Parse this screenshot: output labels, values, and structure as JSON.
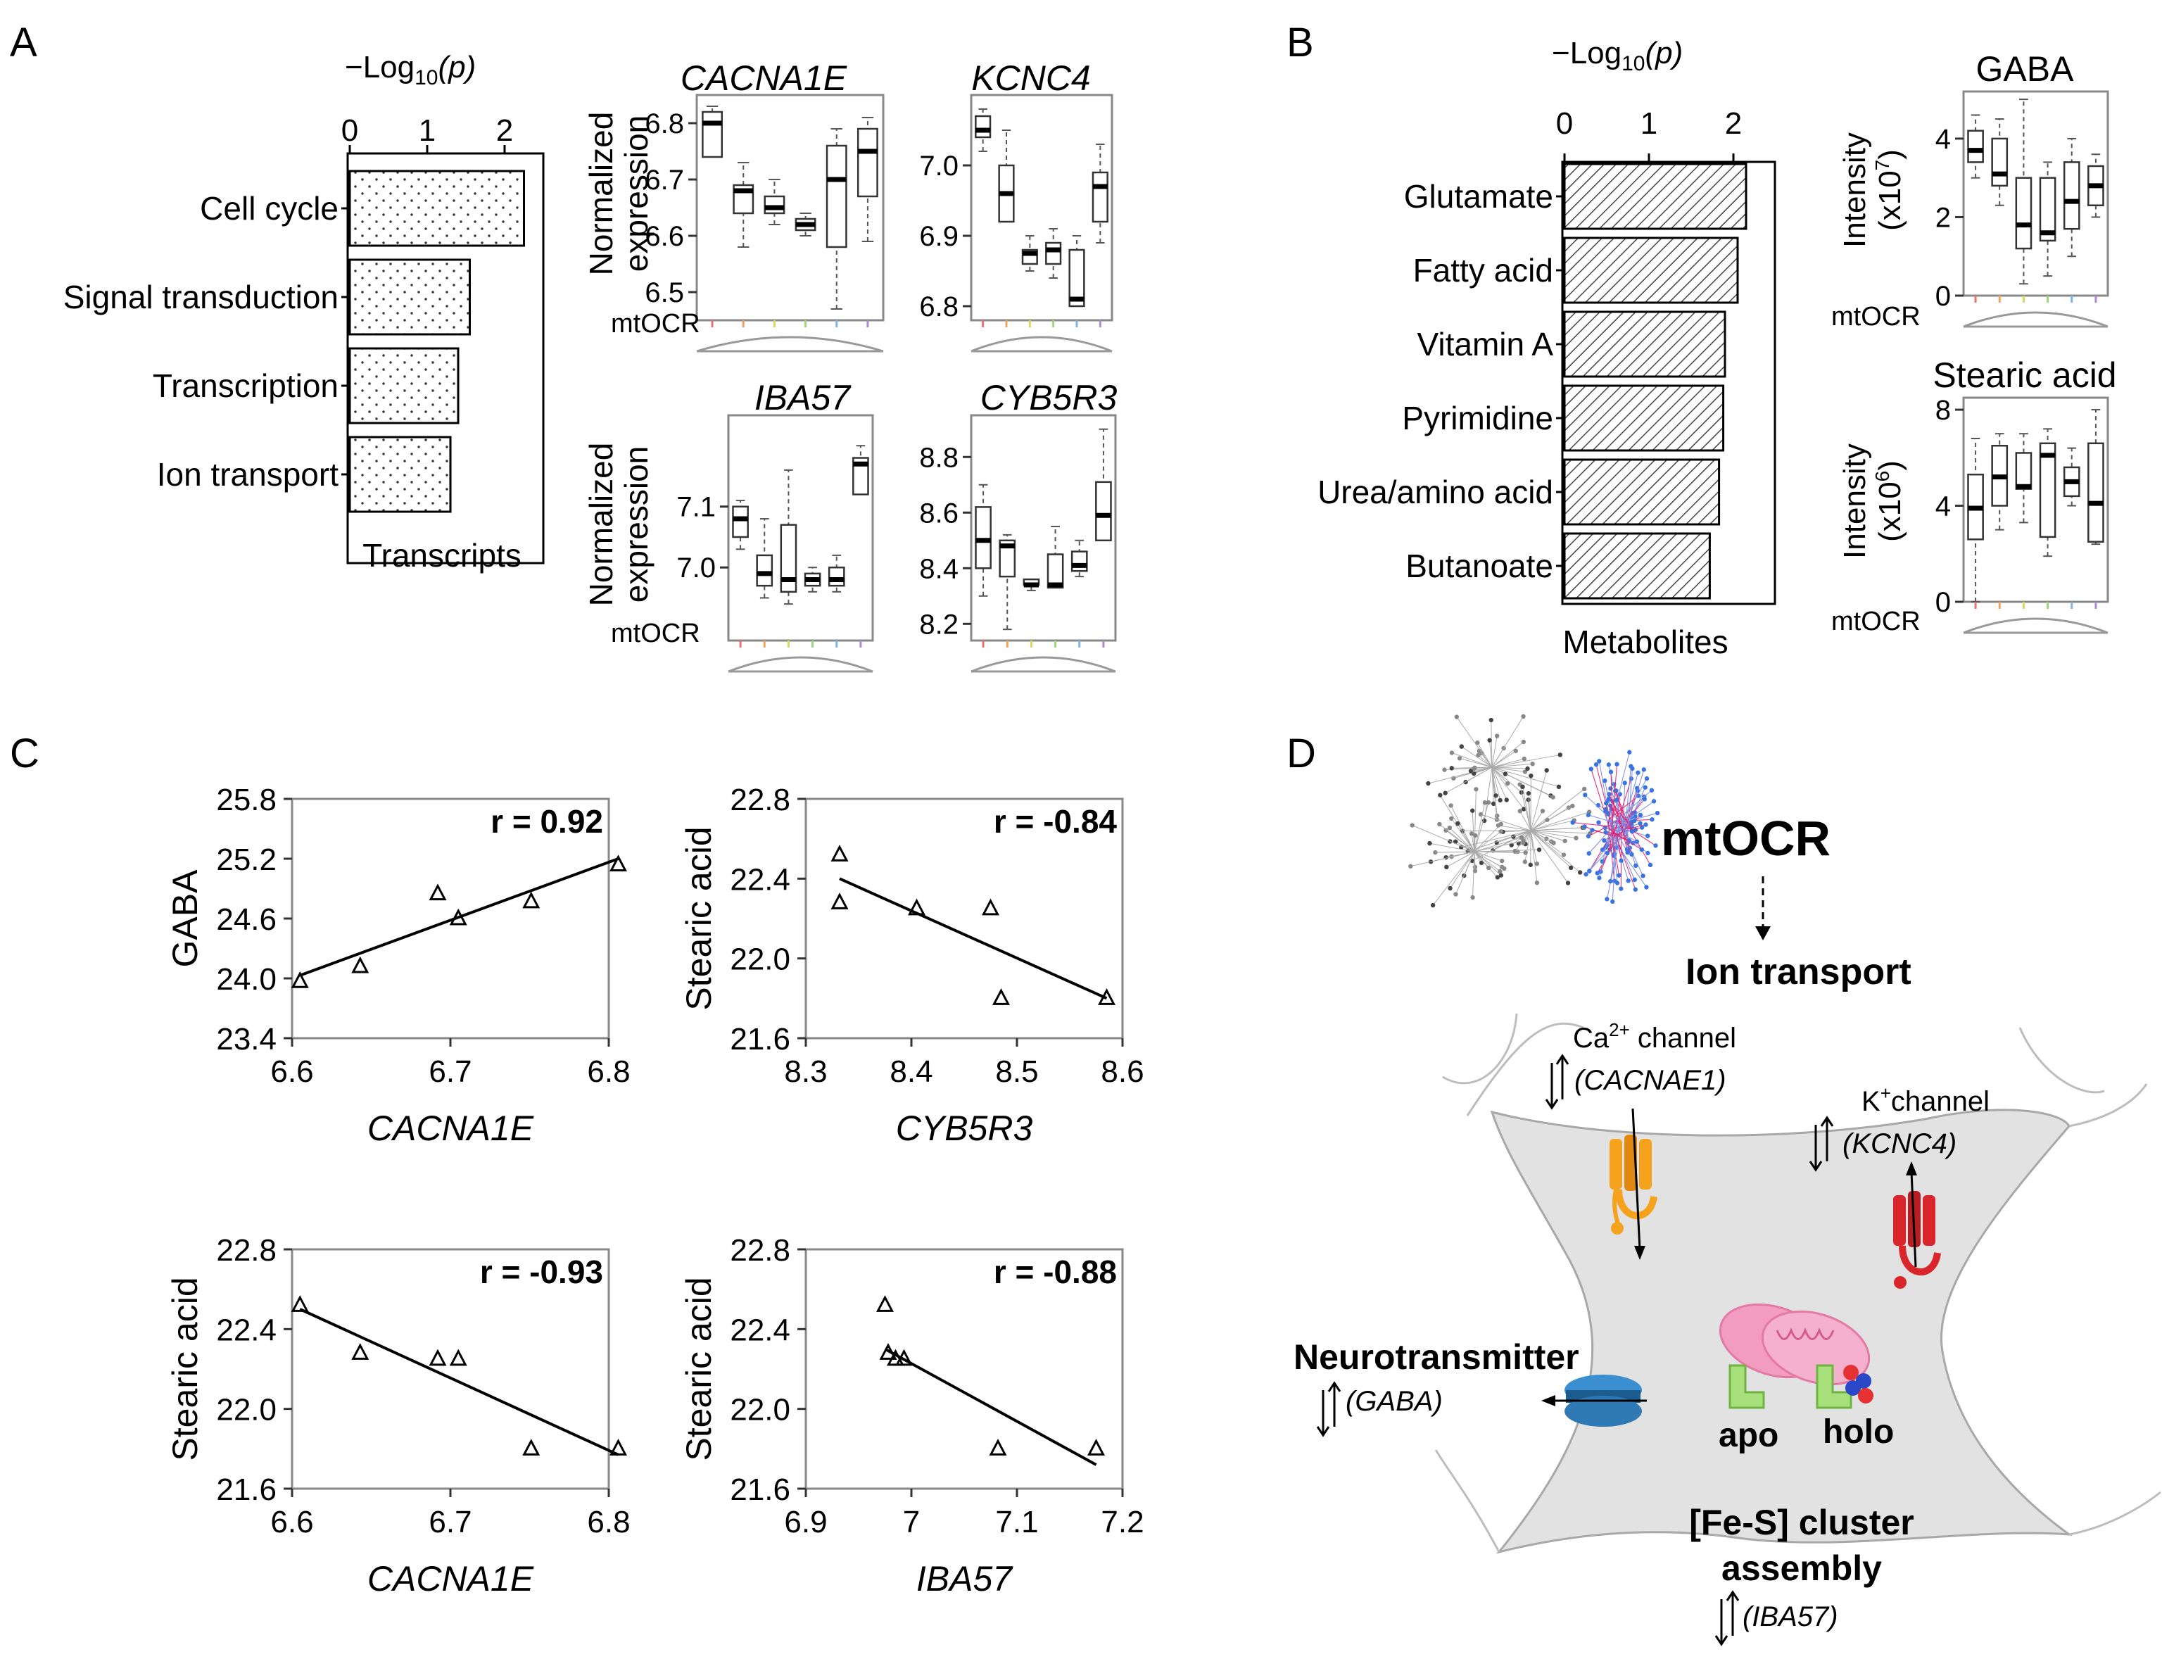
{
  "panel_labels": {
    "a": "A",
    "b": "B",
    "c": "C",
    "d": "D"
  },
  "colors": {
    "line": "#000000",
    "box": "#ffffff",
    "cell": "#e2e2e2",
    "cell_edge": "#a8a8a8",
    "ca_channel": "#f6a21c",
    "k_channel": "#d8262b",
    "gaba_transporter": "#2f79b5",
    "mito": "#f29cbf",
    "fes_protein": "#a8e07c",
    "network_red": "#e8206e",
    "network_blue": "#3a74e0",
    "network_gray": "#777777"
  },
  "panelA": {
    "axis_title": "−Log",
    "axis_title_sub": "10",
    "axis_title_p": "(p)",
    "categories": [
      "Cell cycle",
      "Signal transduction",
      "Transcription",
      "Ion transport"
    ],
    "values": [
      2.25,
      1.55,
      1.4,
      1.3
    ],
    "ticks": [
      "0",
      "1",
      "2"
    ],
    "xlabel": "Transcripts",
    "genes": [
      {
        "name": "CACNA1E",
        "ticks": [
          "6.8",
          "6.7",
          "6.6",
          "6.5"
        ]
      },
      {
        "name": "KCNC4",
        "ticks": [
          "7.0",
          "6.9",
          "6.8"
        ]
      },
      {
        "name": "IBA57",
        "ticks": [
          "7.1",
          "7.0"
        ]
      },
      {
        "name": "CYB5R3",
        "ticks": [
          "8.8",
          "8.6",
          "8.4",
          "8.2"
        ]
      }
    ],
    "ylabel_line1": "Normalized",
    "ylabel_line2": "expression",
    "mtocr_label": "mtOCR"
  },
  "panelB": {
    "axis_title": "−Log",
    "axis_title_sub": "10",
    "axis_title_p": "(p)",
    "categories": [
      "Glutamate",
      "Fatty acid",
      "Vitamin A",
      "Pyrimidine",
      "Urea/amino acid",
      "Butanoate"
    ],
    "values": [
      2.15,
      2.05,
      1.9,
      1.88,
      1.83,
      1.72
    ],
    "ticks": [
      "0",
      "1",
      "2"
    ],
    "xlabel": "Metabolites",
    "gaba": {
      "title": "GABA",
      "ylabel_line1": "Intensity",
      "ylabel_line2": "(x10",
      "exp": "7",
      "ticks": [
        "4",
        "2",
        "0"
      ]
    },
    "stearic": {
      "title": "Stearic  acid",
      "ylabel_line1": "Intensity",
      "ylabel_line2": "(x10",
      "exp": "6",
      "ticks": [
        "8",
        "4",
        "0"
      ]
    },
    "mtocr_label": "mtOCR"
  },
  "chart_data": [
    {
      "type": "bar",
      "title": "−Log10(p)",
      "xlabel": "Transcripts",
      "categories": [
        "Cell cycle",
        "Signal transduction",
        "Transcription",
        "Ion transport"
      ],
      "values": [
        2.25,
        1.55,
        1.4,
        1.3
      ],
      "xlim": [
        0,
        2.5
      ]
    },
    {
      "type": "bar",
      "title": "−Log10(p)",
      "xlabel": "Metabolites",
      "categories": [
        "Glutamate",
        "Fatty acid",
        "Vitamin A",
        "Pyrimidine",
        "Urea/amino acid",
        "Butanoate"
      ],
      "values": [
        2.15,
        2.05,
        1.9,
        1.88,
        1.83,
        1.72
      ],
      "xlim": [
        0,
        2.5
      ]
    },
    {
      "type": "scatter",
      "xlabel": "CACNA1E",
      "ylabel": "GABA",
      "r_label": "r = 0.92",
      "xlim": [
        6.6,
        6.8
      ],
      "ylim": [
        23.4,
        25.8
      ],
      "xticks": [
        "6.6",
        "6.7",
        "6.8"
      ],
      "yticks": [
        "25.8",
        "25.2",
        "24.6",
        "24.0",
        "23.4"
      ],
      "x": [
        6.605,
        6.643,
        6.692,
        6.705,
        6.751,
        6.806
      ],
      "y": [
        23.97,
        24.12,
        24.85,
        24.6,
        24.77,
        25.14
      ],
      "fit": [
        [
          6.605,
          24.03
        ],
        [
          6.806,
          25.2
        ]
      ]
    },
    {
      "type": "scatter",
      "xlabel": "CYB5R3",
      "ylabel": "Stearic  acid",
      "r_label": "r = -0.84",
      "xlim": [
        8.3,
        8.6
      ],
      "ylim": [
        21.6,
        22.8
      ],
      "xticks": [
        "8.3",
        "8.4",
        "8.5",
        "8.6"
      ],
      "yticks": [
        "22.8",
        "22.4",
        "22.0",
        "21.6"
      ],
      "x": [
        8.332,
        8.332,
        8.405,
        8.475,
        8.485,
        8.585
      ],
      "y": [
        22.52,
        22.28,
        22.25,
        22.25,
        21.8,
        21.8
      ],
      "fit": [
        [
          8.332,
          22.4
        ],
        [
          8.585,
          21.8
        ]
      ]
    },
    {
      "type": "scatter",
      "xlabel": "CACNA1E",
      "ylabel": "Stearic  acid",
      "r_label": "r = -0.93",
      "xlim": [
        6.6,
        6.8
      ],
      "ylim": [
        21.6,
        22.8
      ],
      "xticks": [
        "6.6",
        "6.7",
        "6.8"
      ],
      "yticks": [
        "22.8",
        "22.4",
        "22.0",
        "21.6"
      ],
      "x": [
        6.605,
        6.643,
        6.692,
        6.705,
        6.751,
        6.806
      ],
      "y": [
        22.52,
        22.28,
        22.25,
        22.25,
        21.8,
        21.8
      ],
      "fit": [
        [
          6.605,
          22.5
        ],
        [
          6.806,
          21.77
        ]
      ]
    },
    {
      "type": "scatter",
      "xlabel": "IBA57",
      "ylabel": "Stearic  acid",
      "r_label": "r = -0.88",
      "xlim": [
        6.9,
        7.2
      ],
      "ylim": [
        21.6,
        22.8
      ],
      "xticks": [
        "6.9",
        "7",
        "7.1",
        "7.2"
      ],
      "yticks": [
        "22.8",
        "22.4",
        "22.0",
        "21.6"
      ],
      "x": [
        6.975,
        6.978,
        6.985,
        6.993,
        7.082,
        7.175
      ],
      "y": [
        22.52,
        22.28,
        22.25,
        22.25,
        21.8,
        21.8
      ],
      "fit": [
        [
          6.975,
          22.3
        ],
        [
          7.175,
          21.72
        ]
      ]
    }
  ],
  "panelD": {
    "mtocr": "mtOCR",
    "ion_transport": "Ion transport",
    "ca_channel_prefix": "Ca",
    "ca_channel_sup": "2+",
    "ca_channel_suffix": " channel",
    "ca_gene": "(CACNAE1)",
    "k_channel_prefix": "K",
    "k_channel_sup": "+",
    "k_channel_suffix": "channel",
    "k_gene": "(KCNC4)",
    "neurotransmitter": "Neurotransmitter",
    "gaba": "(GABA)",
    "apo": "apo",
    "holo": "holo",
    "fes_line1": "[Fe-S] cluster",
    "fes_line2": "assembly",
    "fes_gene": "(IBA57)"
  }
}
